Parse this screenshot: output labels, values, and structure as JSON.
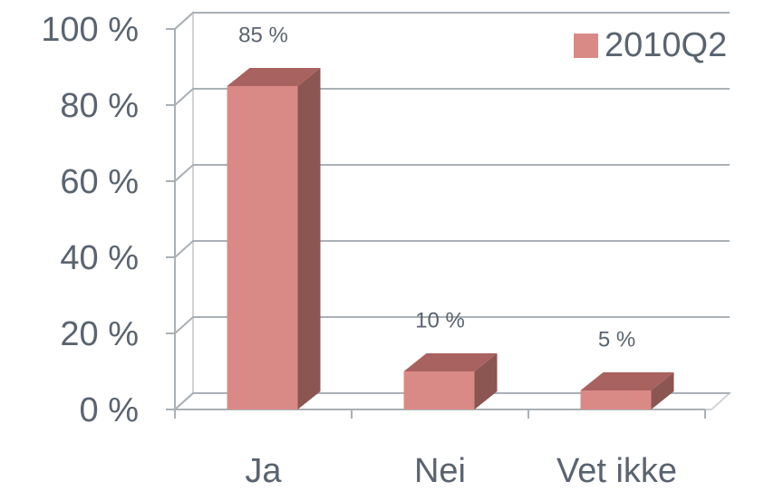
{
  "chart_data": {
    "type": "bar3d",
    "categories": [
      "Ja",
      "Nei",
      "Vet ikke"
    ],
    "series": [
      {
        "name": "2010Q2",
        "color": "#d98a87",
        "values": [
          85,
          10,
          5
        ],
        "value_labels": [
          "85 %",
          "10 %",
          "5 %"
        ]
      }
    ],
    "ylim": [
      0,
      100
    ],
    "yticks": [
      {
        "value": 0,
        "label": "0 %"
      },
      {
        "value": 20,
        "label": "20 %"
      },
      {
        "value": 40,
        "label": "40 %"
      },
      {
        "value": 60,
        "label": "60 %"
      },
      {
        "value": 80,
        "label": "80 %"
      },
      {
        "value": 100,
        "label": "100 %"
      }
    ],
    "grid": true,
    "legend": "top-right"
  }
}
